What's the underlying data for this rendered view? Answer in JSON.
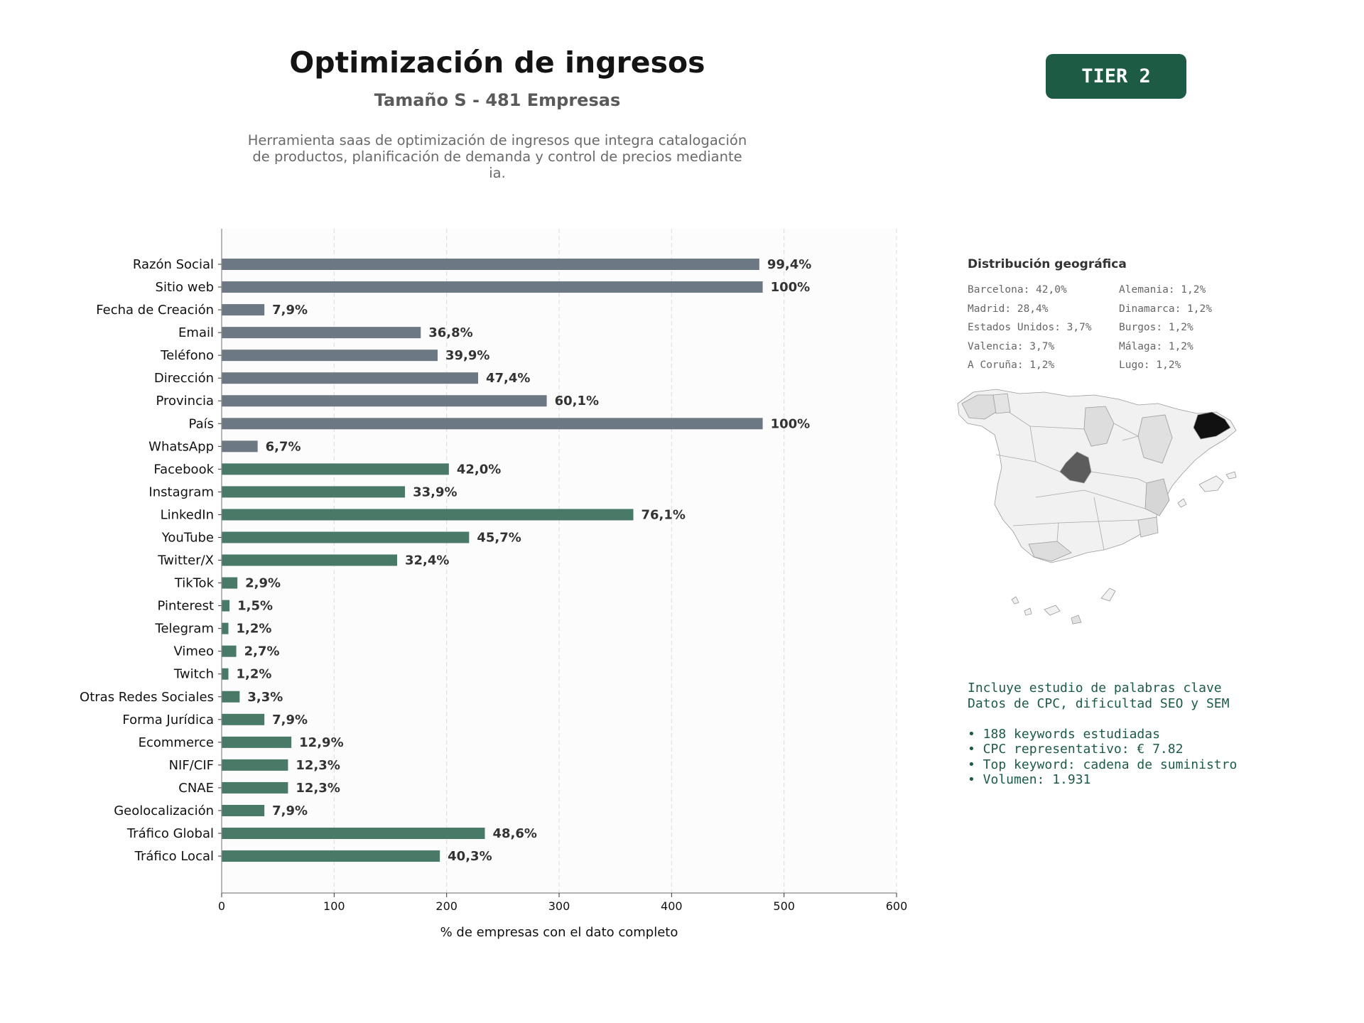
{
  "header": {
    "title": "Optimización de ingresos",
    "subtitle": "Tamaño S - 481 Empresas",
    "description_lines": [
      "Herramienta saas de optimización de ingresos que integra catalogación",
      "de productos, planificación de demanda y control de precios mediante",
      "ia."
    ],
    "tier": "TIER 2"
  },
  "colors": {
    "gray_bar": "#6c7883",
    "green_bar": "#487a67",
    "tier_bg": "#1d5b45"
  },
  "chart_data": {
    "type": "bar",
    "orientation": "horizontal",
    "xlabel": "% de empresas con el dato completo",
    "xlim": [
      0,
      600
    ],
    "xticks": [
      0,
      100,
      200,
      300,
      400,
      500,
      600
    ],
    "grid": "vertical dashed",
    "categories": [
      "Razón Social",
      "Sitio web",
      "Fecha de Creación",
      "Email",
      "Teléfono",
      "Dirección",
      "Provincia",
      "País",
      "WhatsApp",
      "Facebook",
      "Instagram",
      "LinkedIn",
      "YouTube",
      "Twitter/X",
      "TikTok",
      "Pinterest",
      "Telegram",
      "Vimeo",
      "Twitch",
      "Otras Redes Sociales",
      "Forma Jurídica",
      "Ecommerce",
      "NIF/CIF",
      "CNAE",
      "Geolocalización",
      "Tráfico Global",
      "Tráfico Local"
    ],
    "values": [
      478,
      481,
      38,
      177,
      192,
      228,
      289,
      481,
      32,
      202,
      163,
      366,
      220,
      156,
      14,
      7,
      6,
      13,
      6,
      16,
      38,
      62,
      59,
      59,
      38,
      234,
      194
    ],
    "labels": [
      "99,4%",
      "100%",
      "7,9%",
      "36,8%",
      "39,9%",
      "47,4%",
      "60,1%",
      "100%",
      "6,7%",
      "42,0%",
      "33,9%",
      "76,1%",
      "45,7%",
      "32,4%",
      "2,9%",
      "1,5%",
      "1,2%",
      "2,7%",
      "1,2%",
      "3,3%",
      "7,9%",
      "12,9%",
      "12,3%",
      "12,3%",
      "7,9%",
      "48,6%",
      "40,3%"
    ],
    "colors": [
      "gray",
      "gray",
      "gray",
      "gray",
      "gray",
      "gray",
      "gray",
      "gray",
      "gray",
      "green",
      "green",
      "green",
      "green",
      "green",
      "green",
      "green",
      "green",
      "green",
      "green",
      "green",
      "green",
      "green",
      "green",
      "green",
      "green",
      "green",
      "green"
    ]
  },
  "geo": {
    "title": "Distribución geográfica",
    "col1": [
      "Barcelona: 42,0%",
      "Madrid: 28,4%",
      "Estados Unidos: 3,7%",
      "Valencia: 3,7%",
      "A Coruña: 1,2%"
    ],
    "col2": [
      "Alemania: 1,2%",
      "Dinamarca: 1,2%",
      "Burgos: 1,2%",
      "Málaga: 1,2%",
      "Lugo: 1,2%"
    ]
  },
  "keywords": {
    "intro": [
      "Incluye estudio de palabras clave",
      "Datos de CPC, dificultad SEO y SEM"
    ],
    "bullets": [
      "• 188 keywords estudiadas",
      "• CPC representativo: € 7.82",
      "• Top keyword: cadena de suministro",
      "• Volumen: 1.931"
    ]
  }
}
